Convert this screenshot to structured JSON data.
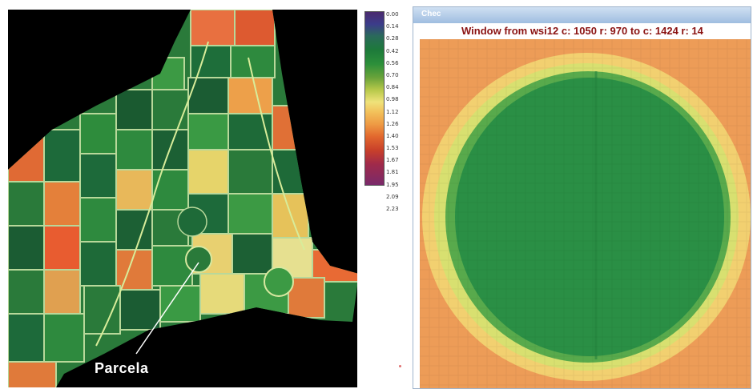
{
  "map": {
    "callout_label": "Parcela"
  },
  "legend": {
    "ticks": [
      "0.00",
      "0.14",
      "0.28",
      "0.42",
      "0.56",
      "0.70",
      "0.84",
      "0.98",
      "1.12",
      "1.26",
      "1.40",
      "1.53",
      "1.67",
      "1.81",
      "1.95",
      "2.09",
      "2.23"
    ]
  },
  "window": {
    "title": "Chec",
    "caption": "Window from wsi12 c: 1050 r: 970 to c: 1424 r: 14"
  },
  "colors": {
    "high_vigor": "#2a8a3c",
    "medium": "#e8e07a",
    "low_vigor": "#e0762f",
    "background": "#000000",
    "caption": "#8a1212"
  }
}
